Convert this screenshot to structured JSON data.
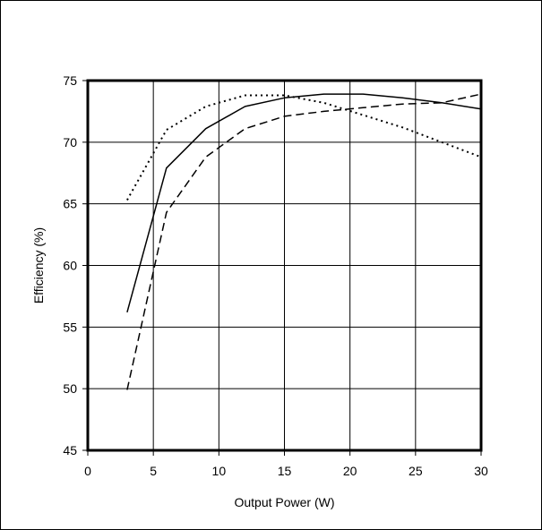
{
  "chart_data": {
    "type": "line",
    "title": "",
    "xlabel": "Output Power (W)",
    "ylabel": "Efficiency (%)",
    "xlim": [
      0,
      30
    ],
    "ylim": [
      45,
      75
    ],
    "xticks": [
      0,
      5,
      10,
      15,
      20,
      25,
      30
    ],
    "yticks": [
      45,
      50,
      55,
      60,
      65,
      70,
      75
    ],
    "grid": true,
    "legend": "none",
    "series": [
      {
        "style": "solid",
        "x": [
          3,
          6,
          9,
          12,
          15,
          18,
          21,
          24,
          27,
          30
        ],
        "values": [
          56.2,
          67.9,
          71.1,
          72.9,
          73.6,
          73.9,
          73.9,
          73.6,
          73.2,
          72.7
        ]
      },
      {
        "style": "dashed",
        "x": [
          3,
          6,
          9,
          12,
          15,
          18,
          21,
          24,
          27,
          30
        ],
        "values": [
          49.9,
          64.3,
          68.8,
          71.1,
          72.1,
          72.5,
          72.8,
          73.1,
          73.2,
          73.9
        ]
      },
      {
        "style": "dotted",
        "x": [
          3,
          6,
          9,
          12,
          15,
          18,
          21,
          24,
          27,
          30
        ],
        "values": [
          65.3,
          71.0,
          72.9,
          73.8,
          73.8,
          73.2,
          72.2,
          71.2,
          70.0,
          68.8
        ]
      }
    ],
    "colors": {
      "line": "#000000",
      "grid": "#000000",
      "background": "#ffffff"
    }
  }
}
